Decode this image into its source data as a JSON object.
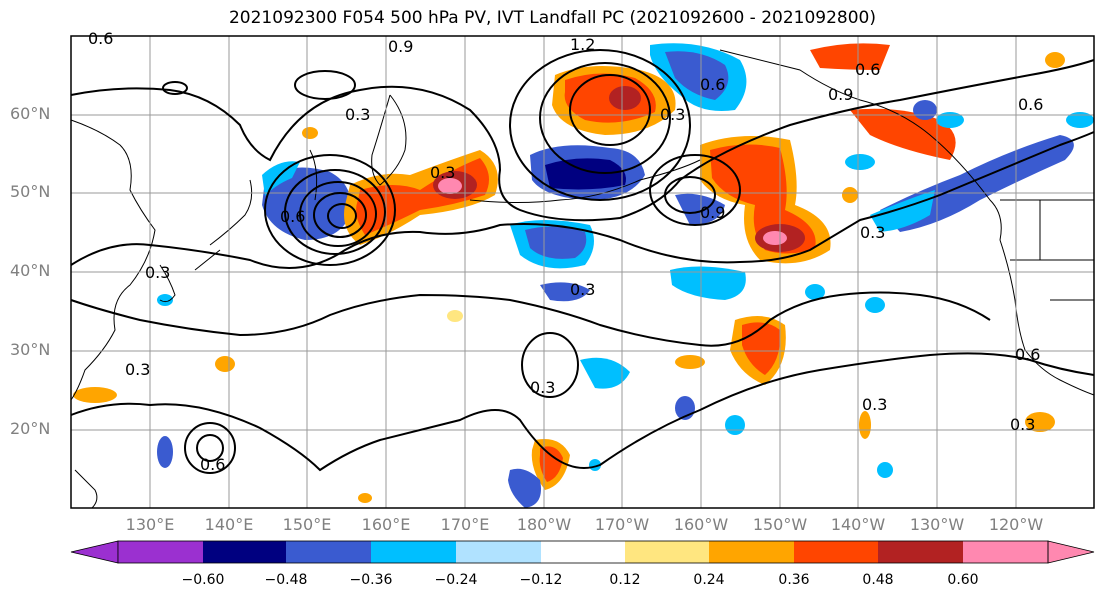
{
  "title": "2021092300 F054 500 hPa PV, IVT Landfall PC (2021092600 - 2021092800)",
  "lat_labels": [
    "60°N",
    "50°N",
    "40°N",
    "30°N",
    "20°N"
  ],
  "lon_labels": [
    "130°E",
    "140°E",
    "150°E",
    "160°E",
    "170°E",
    "180°W",
    "170°W",
    "160°W",
    "150°W",
    "140°W",
    "130°W",
    "120°W"
  ],
  "contour_labels": [
    "0.6",
    "0.9",
    "1.2",
    "0.6",
    "0.9",
    "0.6",
    "0.3",
    "0.3",
    "0.3",
    "0.6",
    "0.9",
    "0.3",
    "0.3",
    "0.3",
    "0.3",
    "0.6",
    "0.3",
    "0.3",
    "0.6",
    "0.6",
    "0.3"
  ],
  "colorbar": {
    "ticks": [
      "−0.60",
      "−0.48",
      "−0.36",
      "−0.24",
      "−0.12",
      "0.12",
      "0.24",
      "0.36",
      "0.48",
      "0.60"
    ],
    "colors": [
      "#9b30d0",
      "#000080",
      "#3a5bd0",
      "#00bfff",
      "#b0e2ff",
      "#ffffff",
      "#ffe680",
      "#ffa500",
      "#ff4500",
      "#b22222",
      "#ff88b0",
      "#ff88b0"
    ]
  },
  "fill_colors": {
    "neg_strong": "#000080",
    "neg_mid": "#3a5bd0",
    "neg_light": "#00bfff",
    "neg_faint": "#b0e2ff",
    "pos_faint": "#ffe680",
    "pos_light": "#ffa500",
    "pos_mid": "#ff4500",
    "pos_strong": "#b22222",
    "pos_max": "#ff88b0"
  }
}
